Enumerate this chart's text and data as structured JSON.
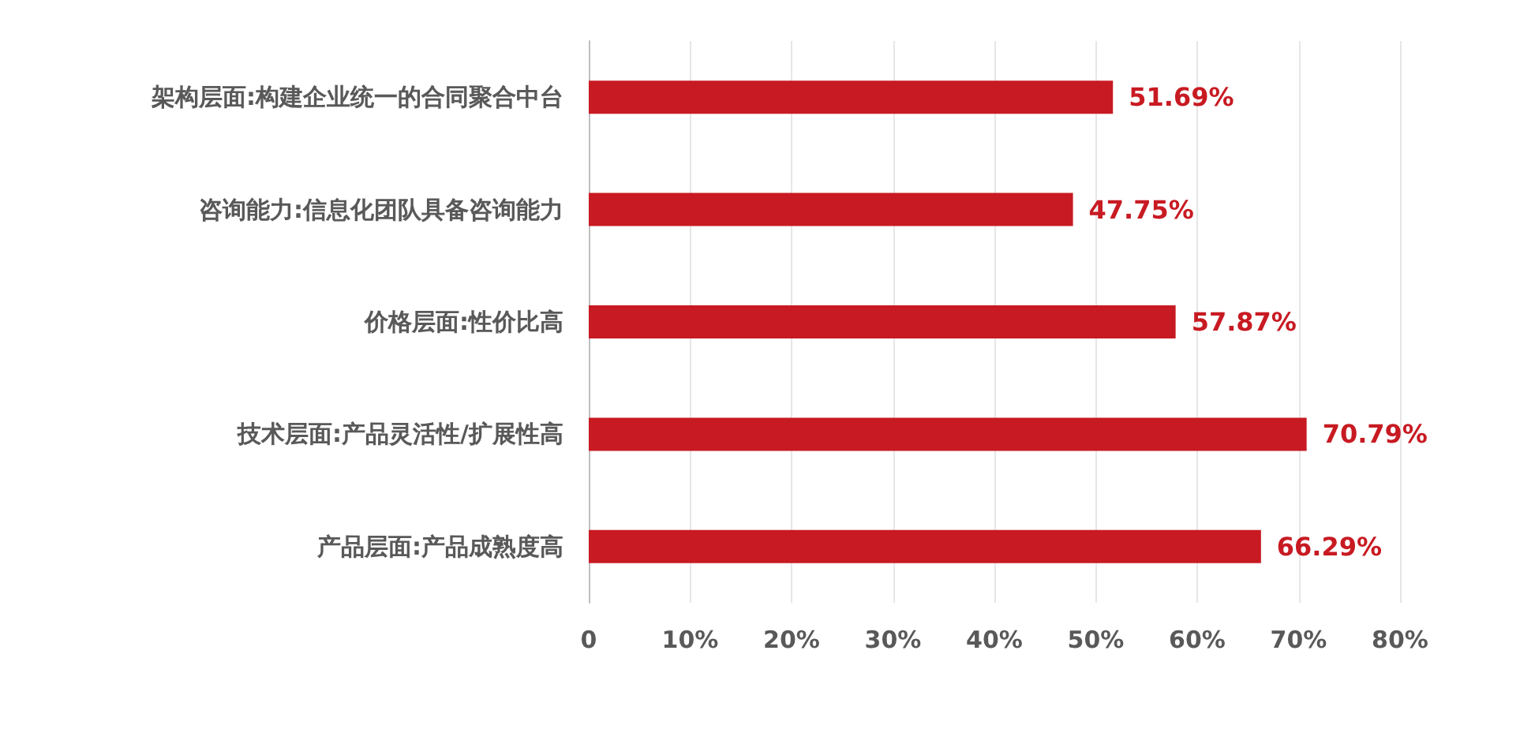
{
  "chart_data": {
    "type": "bar",
    "orientation": "horizontal",
    "categories": [
      "架构层面:构建企业统一的合同聚合中台",
      "咨询能力:信息化团队具备咨询能力",
      "价格层面:性价比高",
      "技术层面:产品灵活性/扩展性高",
      "产品层面:产品成熟度高"
    ],
    "values": [
      51.69,
      47.75,
      57.87,
      70.79,
      66.29
    ],
    "value_labels": [
      "51.69%",
      "47.75%",
      "57.87%",
      "70.79%",
      "66.29%"
    ],
    "color": "#c81a22",
    "xlim": [
      0,
      80
    ],
    "xticks": [
      {
        "value": 0,
        "label": "0"
      },
      {
        "value": 10,
        "label": "10%"
      },
      {
        "value": 20,
        "label": "20%"
      },
      {
        "value": 30,
        "label": "30%"
      },
      {
        "value": 40,
        "label": "40%"
      },
      {
        "value": 50,
        "label": "50%"
      },
      {
        "value": 60,
        "label": "60%"
      },
      {
        "value": 70,
        "label": "70%"
      },
      {
        "value": 80,
        "label": "80%"
      }
    ],
    "grid": "x"
  }
}
